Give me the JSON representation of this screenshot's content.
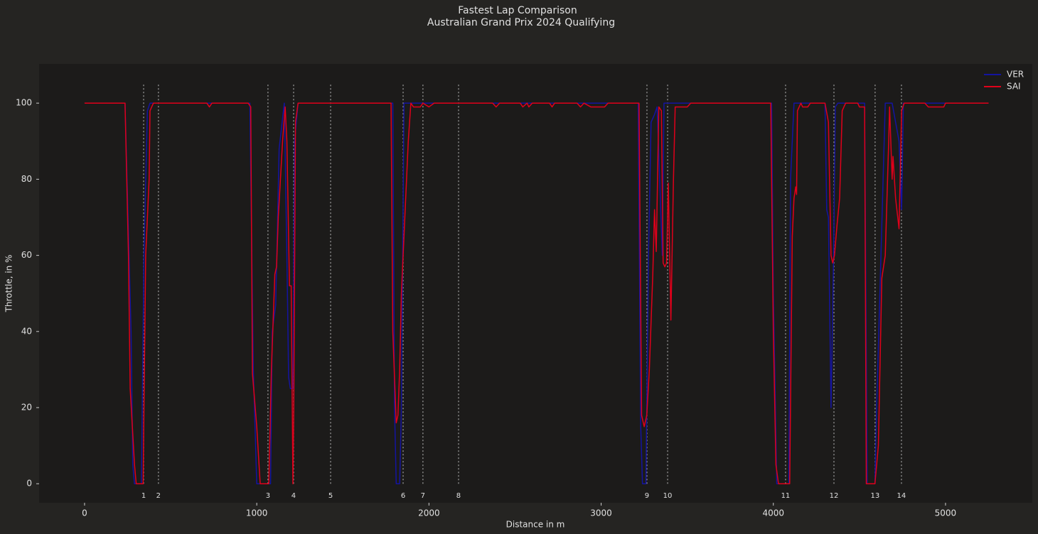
{
  "chart_data": {
    "type": "line",
    "title": "Fastest Lap Comparison",
    "subtitle": "Australian Grand Prix 2024 Qualifying",
    "xlabel": "Distance in m",
    "ylabel": "Throttle, in %",
    "xlim": [
      -264,
      5504
    ],
    "ylim": [
      -5,
      110.3
    ],
    "xticks": [
      0,
      1000,
      2000,
      3000,
      4000,
      5000
    ],
    "yticks": [
      0,
      20,
      40,
      60,
      80,
      100
    ],
    "grid": false,
    "legend": "upper right",
    "series": [
      {
        "name": "VER",
        "color": "#1414a0",
        "x": [
          0,
          235,
          270,
          280,
          290,
          330,
          345,
          365,
          380,
          960,
          980,
          1000,
          1080,
          1090,
          1110,
          1130,
          1160,
          1175,
          1185,
          1195,
          1210,
          1220,
          1240,
          1790,
          1800,
          1810,
          1830,
          1840,
          1855,
          3215,
          3230,
          3240,
          3260,
          3275,
          3290,
          3310,
          3325,
          3340,
          3355,
          3365,
          3990,
          4000,
          4020,
          4090,
          4100,
          4120,
          4300,
          4310,
          4320,
          4335,
          4350,
          4360,
          4375,
          4530,
          4545,
          4590,
          4600,
          4625,
          4650,
          4690,
          4730,
          4745,
          4755,
          5250
        ],
        "values": [
          100,
          100,
          40,
          5,
          0,
          0,
          60,
          98,
          100,
          100,
          30,
          0,
          0,
          40,
          47,
          88,
          100,
          60,
          28,
          25,
          25,
          90,
          100,
          100,
          20,
          0,
          0,
          20,
          100,
          100,
          15,
          0,
          0,
          60,
          95,
          97,
          99,
          80,
          60,
          100,
          100,
          50,
          0,
          0,
          80,
          100,
          100,
          72,
          70,
          20,
          60,
          99,
          100,
          100,
          0,
          0,
          20,
          60,
          100,
          100,
          90,
          72,
          100,
          100
        ]
      },
      {
        "name": "SAI",
        "color": "#e0001a",
        "x": [
          0,
          235,
          255,
          265,
          290,
          300,
          340,
          355,
          375,
          380,
          400,
          710,
          725,
          740,
          950,
          965,
          975,
          1000,
          1020,
          1070,
          1085,
          1105,
          1115,
          1125,
          1150,
          1165,
          1175,
          1190,
          1200,
          1210,
          1215,
          1225,
          1240,
          1780,
          1790,
          1810,
          1820,
          1830,
          1840,
          1860,
          1880,
          1895,
          1910,
          1950,
          1965,
          2000,
          2030,
          2370,
          2390,
          2410,
          2530,
          2545,
          2570,
          2580,
          2600,
          2700,
          2715,
          2730,
          2860,
          2880,
          2900,
          2940,
          3020,
          3040,
          3220,
          3235,
          3250,
          3265,
          3280,
          3300,
          3310,
          3320,
          3335,
          3350,
          3360,
          3370,
          3380,
          3390,
          3405,
          3420,
          3430,
          3500,
          3520,
          3985,
          4000,
          4015,
          4030,
          4095,
          4110,
          4120,
          4130,
          4135,
          4140,
          4160,
          4170,
          4200,
          4215,
          4300,
          4320,
          4335,
          4345,
          4355,
          4370,
          4385,
          4400,
          4420,
          4490,
          4500,
          4530,
          4540,
          4590,
          4610,
          4630,
          4650,
          4670,
          4675,
          4690,
          4695,
          4710,
          4730,
          4745,
          4760,
          4880,
          4900,
          4990,
          5000,
          5250
        ],
        "values": [
          100,
          100,
          60,
          25,
          5,
          0,
          0,
          60,
          80,
          98,
          100,
          100,
          99,
          100,
          100,
          99,
          29,
          15,
          0,
          0,
          30,
          55,
          57,
          70,
          90,
          99,
          90,
          52,
          52,
          0,
          20,
          95,
          100,
          100,
          40,
          16,
          18,
          30,
          50,
          70,
          90,
          100,
          99,
          99,
          100,
          99,
          100,
          100,
          99,
          100,
          100,
          99,
          100,
          99,
          100,
          100,
          99,
          100,
          100,
          99,
          100,
          99,
          99,
          100,
          100,
          18,
          15,
          18,
          30,
          55,
          72,
          61,
          99,
          98,
          58,
          57,
          58,
          79,
          43,
          80,
          99,
          99,
          100,
          100,
          40,
          5,
          0,
          0,
          65,
          75,
          78,
          76,
          98,
          100,
          99,
          99,
          100,
          100,
          95,
          60,
          58,
          60,
          68,
          75,
          98,
          100,
          100,
          99,
          99,
          0,
          0,
          10,
          54,
          60,
          90,
          99,
          80,
          86,
          75,
          67,
          98,
          100,
          100,
          99,
          99,
          100,
          100
        ]
      }
    ],
    "corners": {
      "labels": [
        "1",
        "2",
        "3",
        "4",
        "5",
        "6",
        "7",
        "8",
        "9",
        "10",
        "11",
        "12",
        "13",
        "14"
      ],
      "x": [
        343,
        429,
        1065,
        1214,
        1429,
        1850,
        1965,
        2172,
        3266,
        3386,
        4071,
        4352,
        4591,
        4744
      ]
    },
    "corner_lines_ylim": [
      0,
      105
    ]
  }
}
